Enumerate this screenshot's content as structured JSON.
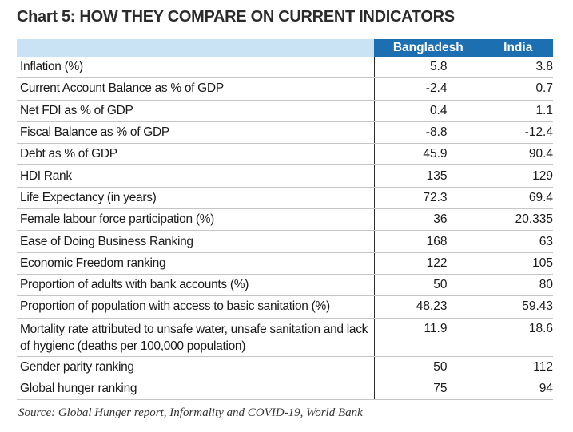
{
  "chart_data": {
    "type": "table",
    "title": "Chart 5: HOW THEY COMPARE ON CURRENT INDICATORS",
    "columns": [
      "",
      "Bangladesh",
      "India"
    ],
    "rows": [
      {
        "indicator": "Inflation (%)",
        "bangladesh": "5.8",
        "india": "3.8"
      },
      {
        "indicator": "Current Account Balance as % of GDP",
        "bangladesh": "-2.4",
        "india": "0.7"
      },
      {
        "indicator": "Net FDI as % of GDP",
        "bangladesh": "0.4",
        "india": "1.1"
      },
      {
        "indicator": "Fiscal Balance as % of GDP",
        "bangladesh": "-8.8",
        "india": "-12.4"
      },
      {
        "indicator": "Debt as % of GDP",
        "bangladesh": "45.9",
        "india": "90.4"
      },
      {
        "indicator": "HDI Rank",
        "bangladesh": "135",
        "india": "129"
      },
      {
        "indicator": "Life Expectancy (in years)",
        "bangladesh": "72.3",
        "india": "69.4"
      },
      {
        "indicator": "Female labour force participation (%)",
        "bangladesh": "36",
        "india": "20.335"
      },
      {
        "indicator": "Ease of Doing Business Ranking",
        "bangladesh": "168",
        "india": "63"
      },
      {
        "indicator": "Economic Freedom ranking",
        "bangladesh": "122",
        "india": "105"
      },
      {
        "indicator": "Proportion of adults with bank accounts (%)",
        "bangladesh": "50",
        "india": "80"
      },
      {
        "indicator": "Proportion of population with access to basic sanitation (%)",
        "bangladesh": "48.23",
        "india": "59.43"
      },
      {
        "indicator": "Mortality rate attributed to unsafe water, unsafe sanitation and lack of hygienc (deaths per 100,000 population)",
        "bangladesh": "11.9",
        "india": "18.6",
        "multiline": true
      },
      {
        "indicator": "Gender parity ranking",
        "bangladesh": "50",
        "india": "112"
      },
      {
        "indicator": "Global hunger ranking",
        "bangladesh": "75",
        "india": "94"
      }
    ],
    "source": "Source: Global Hunger report, Informality and COVID-19, World Bank",
    "header_color": "#1c6fb0",
    "header_blank_color": "#c9e3f4"
  }
}
